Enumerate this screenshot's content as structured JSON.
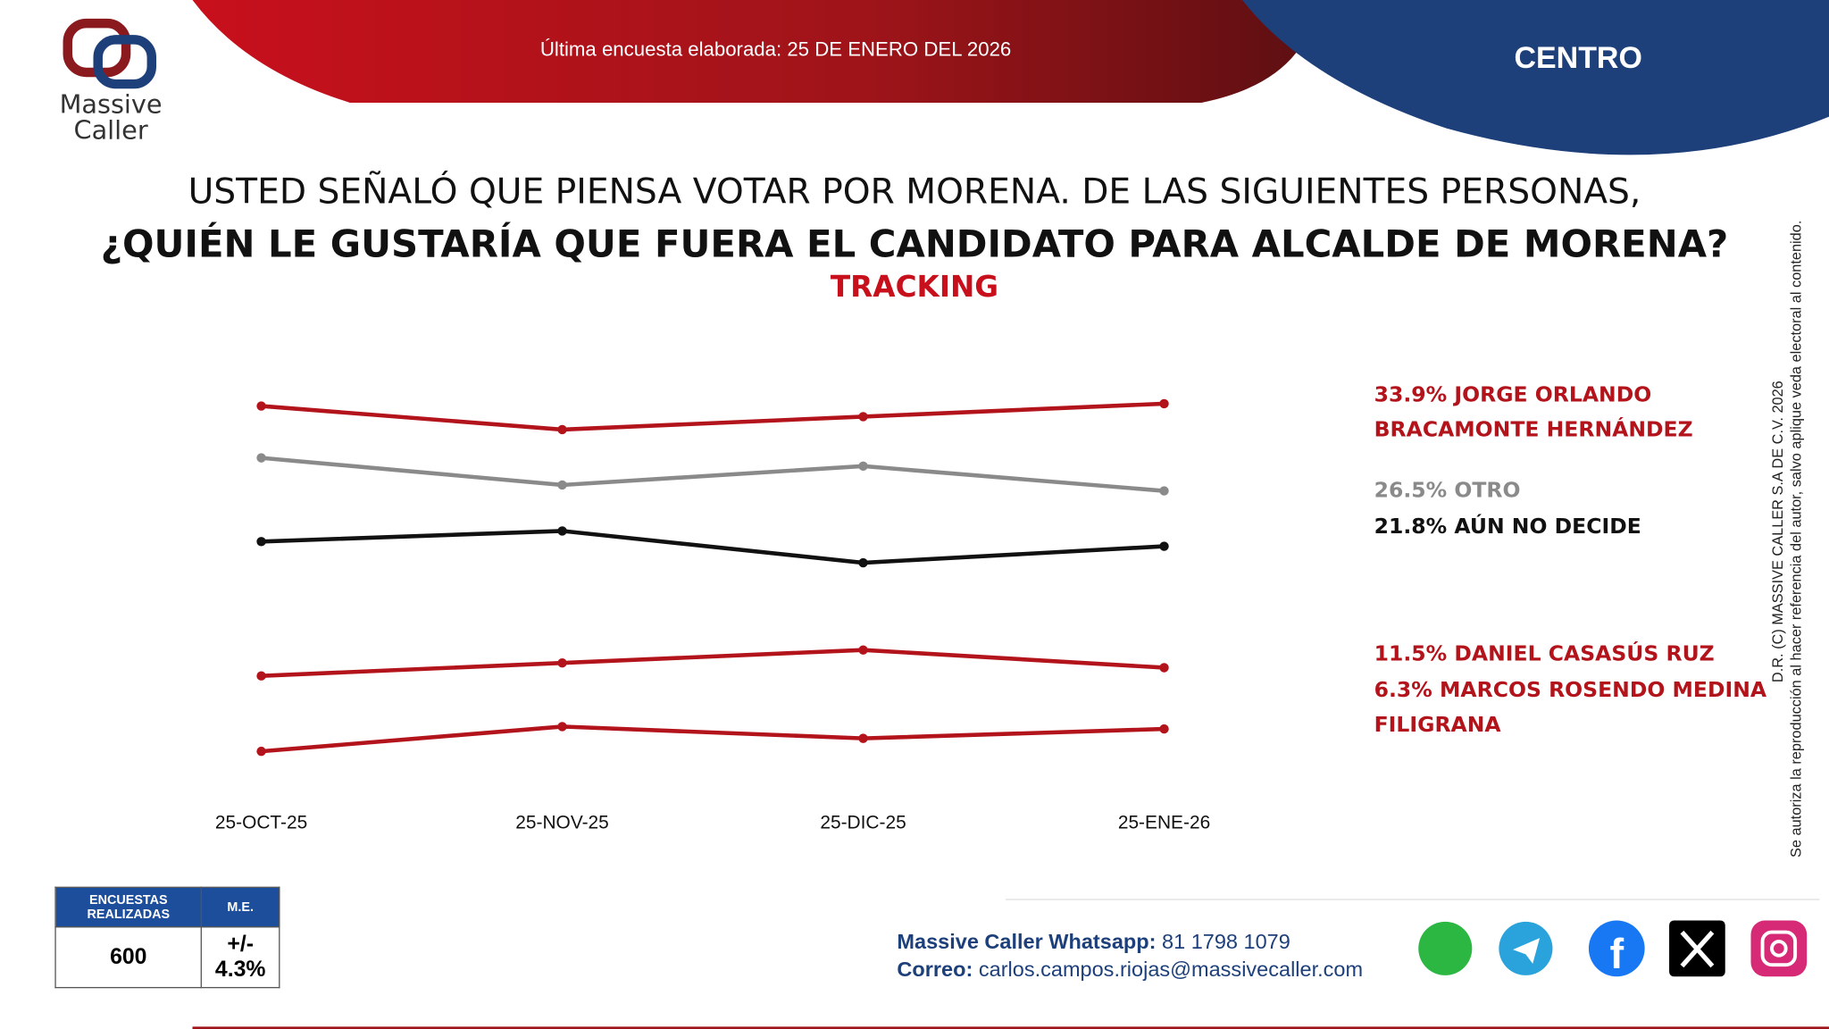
{
  "header": {
    "survey_date": "Última encuesta elaborada: 25 DE ENERO DEL 2026",
    "region": "CENTRO",
    "logo": [
      "Massive",
      "Caller"
    ]
  },
  "chart_data": {
    "type": "line",
    "title_lines": [
      "USTED SEÑALÓ QUE PIENSA VOTAR POR MORENA. DE LAS SIGUIENTES PERSONAS,",
      "¿QUIÉN LE GUSTARÍA QUE FUERA EL CANDIDATO PARA ALCALDE DE MORENA?"
    ],
    "subtitle": "TRACKING",
    "categories": [
      "25-OCT-25",
      "25-NOV-25",
      "25-DIC-25",
      "25-ENE-26"
    ],
    "series": [
      {
        "name": "JORGE ORLANDO BRACAMONTE HERNÁNDEZ",
        "color": "#b3141b",
        "values": [
          33.7,
          31.7,
          32.8,
          33.9
        ],
        "value_labels": [
          null,
          null,
          null,
          "33.9%"
        ]
      },
      {
        "name": "OTRO",
        "color": "#8a8a8a",
        "values": [
          29.3,
          27.0,
          28.6,
          26.5
        ],
        "value_labels": [
          null,
          null,
          null,
          "26.5%"
        ]
      },
      {
        "name": "AÚN NO DECIDE",
        "color": "#111111",
        "values": [
          22.2,
          23.1,
          20.4,
          21.8
        ],
        "value_labels": [
          null,
          null,
          null,
          "21.8%"
        ]
      },
      {
        "name": "DANIEL CASASÚS RUZ",
        "color": "#b3141b",
        "values": [
          10.8,
          11.9,
          13.0,
          11.5
        ],
        "value_labels": [
          null,
          null,
          null,
          "11.5%"
        ]
      },
      {
        "name": "MARCOS ROSENDO MEDINA FILIGRANA",
        "color": "#b3141b",
        "values": [
          4.4,
          6.5,
          5.5,
          6.3
        ],
        "value_labels": [
          null,
          null,
          null,
          "6.3%"
        ]
      }
    ]
  },
  "survey_table": {
    "headers": [
      "ENCUESTAS REALIZADAS",
      "M.E."
    ],
    "row": [
      "600",
      "+/- 4.3%"
    ]
  },
  "contact": {
    "whatsapp_label": "Massive Caller Whatsapp:",
    "whatsapp": "81 1798 1079",
    "email_label": "Correo:",
    "email": "carlos.campos.riojas@massivecaller.com"
  },
  "copyright": [
    "D.R. (C) MASSIVE CALLER S.A DE C.V. 2026",
    "Se autoriza la reproducción al hacer referencia del autor, salvo aplique veda electoral al contenido."
  ]
}
